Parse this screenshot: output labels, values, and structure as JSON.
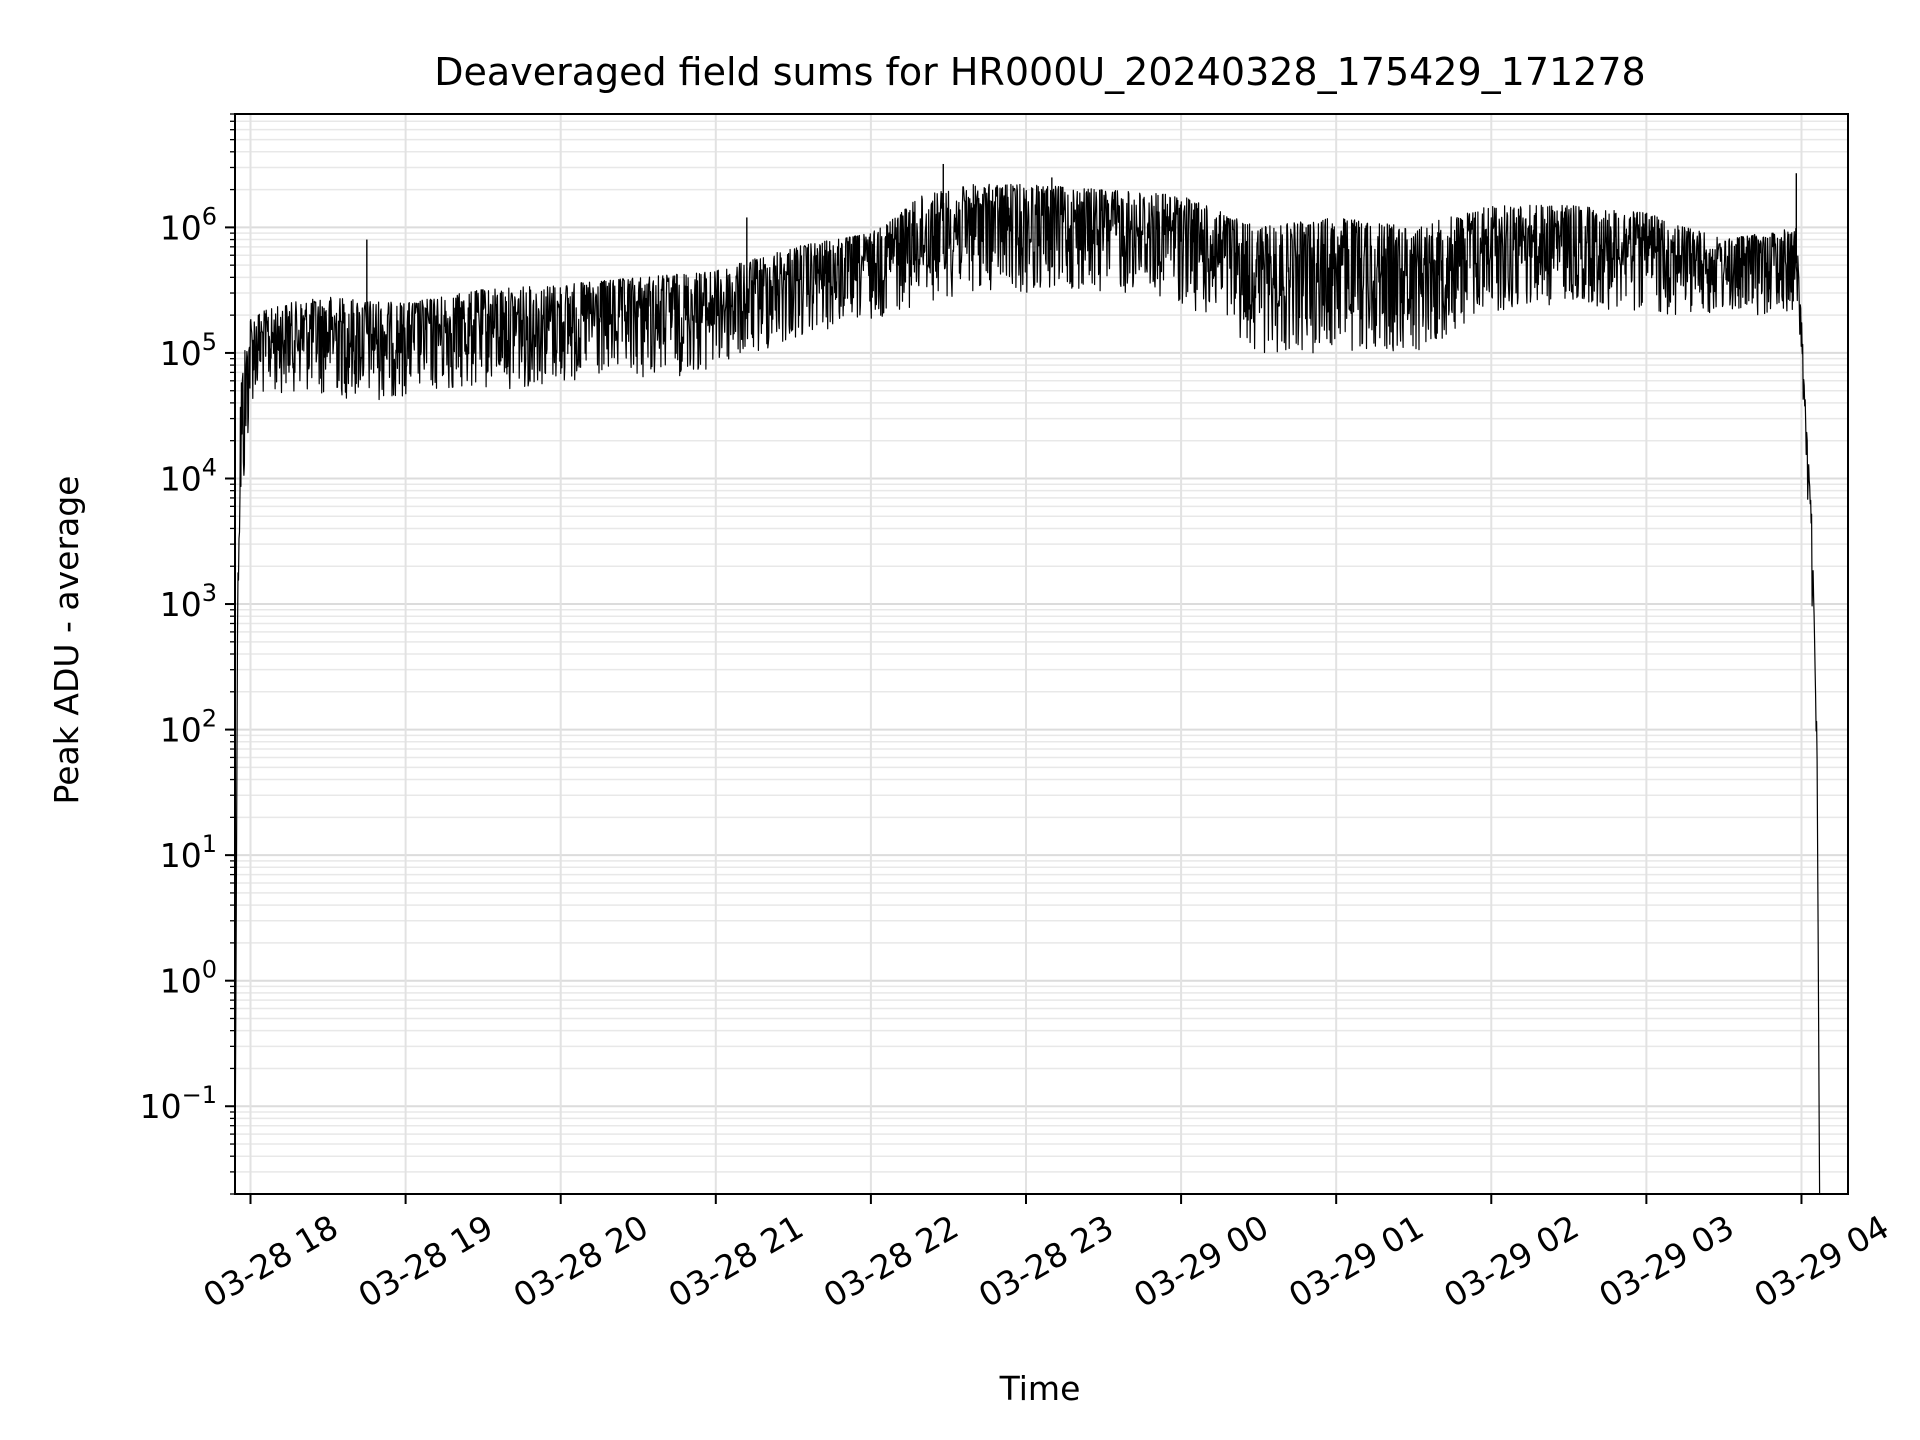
{
  "chart_data": {
    "type": "line",
    "title": "Deaveraged field sums for HR000U_20240328_175429_171278",
    "xlabel": "Time",
    "ylabel": "Peak ADU - average",
    "yscale": "log",
    "grid": true,
    "xlim": [
      "2024-03-28 17:54",
      "2024-03-29 04:18"
    ],
    "ylim": [
      0.02,
      8000000
    ],
    "x_ticks": [
      {
        "value": "2024-03-28 18:00",
        "label": "03-28 18"
      },
      {
        "value": "2024-03-28 19:00",
        "label": "03-28 19"
      },
      {
        "value": "2024-03-28 20:00",
        "label": "03-28 20"
      },
      {
        "value": "2024-03-28 21:00",
        "label": "03-28 21"
      },
      {
        "value": "2024-03-28 22:00",
        "label": "03-28 22"
      },
      {
        "value": "2024-03-28 23:00",
        "label": "03-28 23"
      },
      {
        "value": "2024-03-29 00:00",
        "label": "03-29 00"
      },
      {
        "value": "2024-03-29 01:00",
        "label": "03-29 01"
      },
      {
        "value": "2024-03-29 02:00",
        "label": "03-29 02"
      },
      {
        "value": "2024-03-29 03:00",
        "label": "03-29 03"
      },
      {
        "value": "2024-03-29 04:00",
        "label": "03-29 04"
      }
    ],
    "y_ticks": [
      {
        "value": 0.1,
        "base": "10",
        "exp": "−1"
      },
      {
        "value": 1,
        "base": "10",
        "exp": "0"
      },
      {
        "value": 10,
        "base": "10",
        "exp": "1"
      },
      {
        "value": 100,
        "base": "10",
        "exp": "2"
      },
      {
        "value": 1000,
        "base": "10",
        "exp": "3"
      },
      {
        "value": 10000,
        "base": "10",
        "exp": "4"
      },
      {
        "value": 100000,
        "base": "10",
        "exp": "5"
      },
      {
        "value": 1000000,
        "base": "10",
        "exp": "6"
      }
    ],
    "series": [
      {
        "color": "#000000",
        "envelope": [
          {
            "x": "2024-03-28 17:54",
            "low": 0.02,
            "high": 0.02
          },
          {
            "x": "2024-03-28 17:55",
            "low": 800,
            "high": 1000
          },
          {
            "x": "2024-03-28 17:56",
            "low": 3000,
            "high": 60000
          },
          {
            "x": "2024-03-28 17:58",
            "low": 8000,
            "high": 120000
          },
          {
            "x": "2024-03-28 18:00",
            "low": 40000,
            "high": 200000
          },
          {
            "x": "2024-03-28 18:15",
            "low": 50000,
            "high": 250000
          },
          {
            "x": "2024-03-28 18:30",
            "low": 45000,
            "high": 280000
          },
          {
            "x": "2024-03-28 18:45",
            "low": 40000,
            "high": 260000
          },
          {
            "x": "2024-03-28 19:00",
            "low": 45000,
            "high": 250000
          },
          {
            "x": "2024-03-28 19:30",
            "low": 50000,
            "high": 320000
          },
          {
            "x": "2024-03-28 20:00",
            "low": 55000,
            "high": 350000
          },
          {
            "x": "2024-03-28 20:30",
            "low": 60000,
            "high": 400000
          },
          {
            "x": "2024-03-28 21:00",
            "low": 70000,
            "high": 450000
          },
          {
            "x": "2024-03-28 21:30",
            "low": 120000,
            "high": 700000
          },
          {
            "x": "2024-03-28 22:00",
            "low": 180000,
            "high": 900000
          },
          {
            "x": "2024-03-28 22:20",
            "low": 250000,
            "high": 1800000
          },
          {
            "x": "2024-03-28 22:40",
            "low": 300000,
            "high": 2200000
          },
          {
            "x": "2024-03-28 23:00",
            "low": 300000,
            "high": 2200000
          },
          {
            "x": "2024-03-28 23:30",
            "low": 300000,
            "high": 2000000
          },
          {
            "x": "2024-03-29 00:00",
            "low": 250000,
            "high": 1800000
          },
          {
            "x": "2024-03-29 00:30",
            "low": 100000,
            "high": 1000000
          },
          {
            "x": "2024-03-29 01:00",
            "low": 100000,
            "high": 1200000
          },
          {
            "x": "2024-03-29 01:30",
            "low": 100000,
            "high": 1000000
          },
          {
            "x": "2024-03-29 02:00",
            "low": 200000,
            "high": 1500000
          },
          {
            "x": "2024-03-29 02:30",
            "low": 250000,
            "high": 1500000
          },
          {
            "x": "2024-03-29 03:00",
            "low": 200000,
            "high": 1300000
          },
          {
            "x": "2024-03-29 03:30",
            "low": 200000,
            "high": 800000
          },
          {
            "x": "2024-03-29 03:58",
            "low": 200000,
            "high": 1000000
          },
          {
            "x": "2024-03-29 04:00",
            "low": 80000,
            "high": 200000
          },
          {
            "x": "2024-03-29 04:02",
            "low": 10000,
            "high": 25000
          },
          {
            "x": "2024-03-29 04:04",
            "low": 1000,
            "high": 5000
          },
          {
            "x": "2024-03-29 04:06",
            "low": 50,
            "high": 100
          },
          {
            "x": "2024-03-29 04:07",
            "low": 0.02,
            "high": 0.02
          }
        ],
        "spikes": [
          {
            "x": "2024-03-28 18:45",
            "y": 800000
          },
          {
            "x": "2024-03-28 21:12",
            "y": 1200000
          },
          {
            "x": "2024-03-28 22:28",
            "y": 3200000
          },
          {
            "x": "2024-03-28 23:10",
            "y": 2500000
          },
          {
            "x": "2024-03-29 03:58",
            "y": 2700000
          }
        ]
      }
    ]
  }
}
